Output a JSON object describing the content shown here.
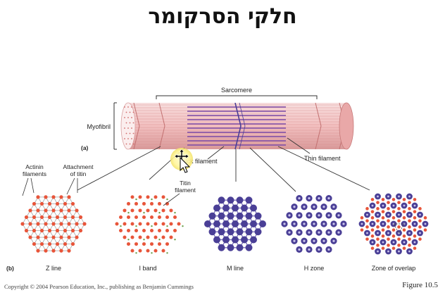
{
  "slide": {
    "title": "חלקי הסרקומר",
    "copyright": "Copyright © 2004 Pearson Education, Inc., publishing as Benjamin Cummings",
    "figure_label": "Figure 10.5"
  },
  "diagram": {
    "part_a_label": "(a)",
    "part_b_label": "(b)",
    "sarcomere_label": "Sarcomere",
    "myofibril_label": "Myofibril",
    "thick_filament_label": "Thick filament",
    "thin_filament_label": "Thin filament",
    "actinin_label_line1": "Actinin",
    "actinin_label_line2": "filaments",
    "attachment_label_line1": "Attachment",
    "attachment_label_line2": "of titin",
    "titin_label_line1": "Titin",
    "titin_label_line2": "filament",
    "sections": [
      {
        "label": "Z line"
      },
      {
        "label": "I band"
      },
      {
        "label": "M line"
      },
      {
        "label": "H zone"
      },
      {
        "label": "Zone of overlap"
      }
    ]
  },
  "colors": {
    "actin": "#e8553a",
    "myosin": "#4a3f96",
    "titin": "#6aa04a",
    "lattice": "#9a9a9a",
    "myofibril_fill": "#f2c3c3",
    "thick_band": "#7a4aa8"
  }
}
